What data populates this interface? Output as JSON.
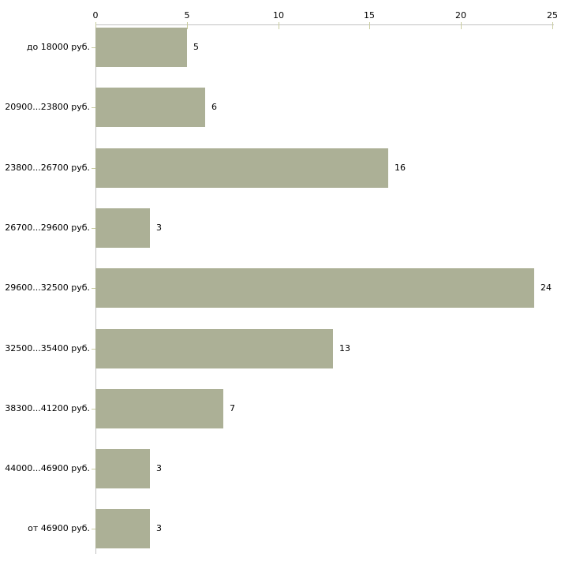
{
  "chart_data": {
    "type": "bar",
    "orientation": "horizontal",
    "title": "",
    "xlabel": "",
    "ylabel": "",
    "categories": [
      "до 18000 руб.",
      "20900...23800 руб.",
      "23800...26700 руб.",
      "26700...29600 руб.",
      "29600...32500 руб.",
      "32500...35400 руб.",
      "38300...41200 руб.",
      "44000...46900 руб.",
      "от 46900 руб."
    ],
    "values": [
      5,
      6,
      16,
      3,
      24,
      13,
      7,
      3,
      3
    ],
    "value_labels": [
      "5",
      "6",
      "16",
      "3",
      "24",
      "13",
      "7",
      "3",
      "3"
    ],
    "x_ticks": [
      0,
      5,
      10,
      15,
      20,
      25
    ],
    "xlim": [
      0,
      25
    ],
    "axis_position": "top",
    "grid": false,
    "legend": false,
    "colors": {
      "bar_fill": "#acb096",
      "tick_mark": "#c9cc9f",
      "axis_line": "#c2c2c2",
      "text": "#000000",
      "background": "#ffffff"
    }
  }
}
